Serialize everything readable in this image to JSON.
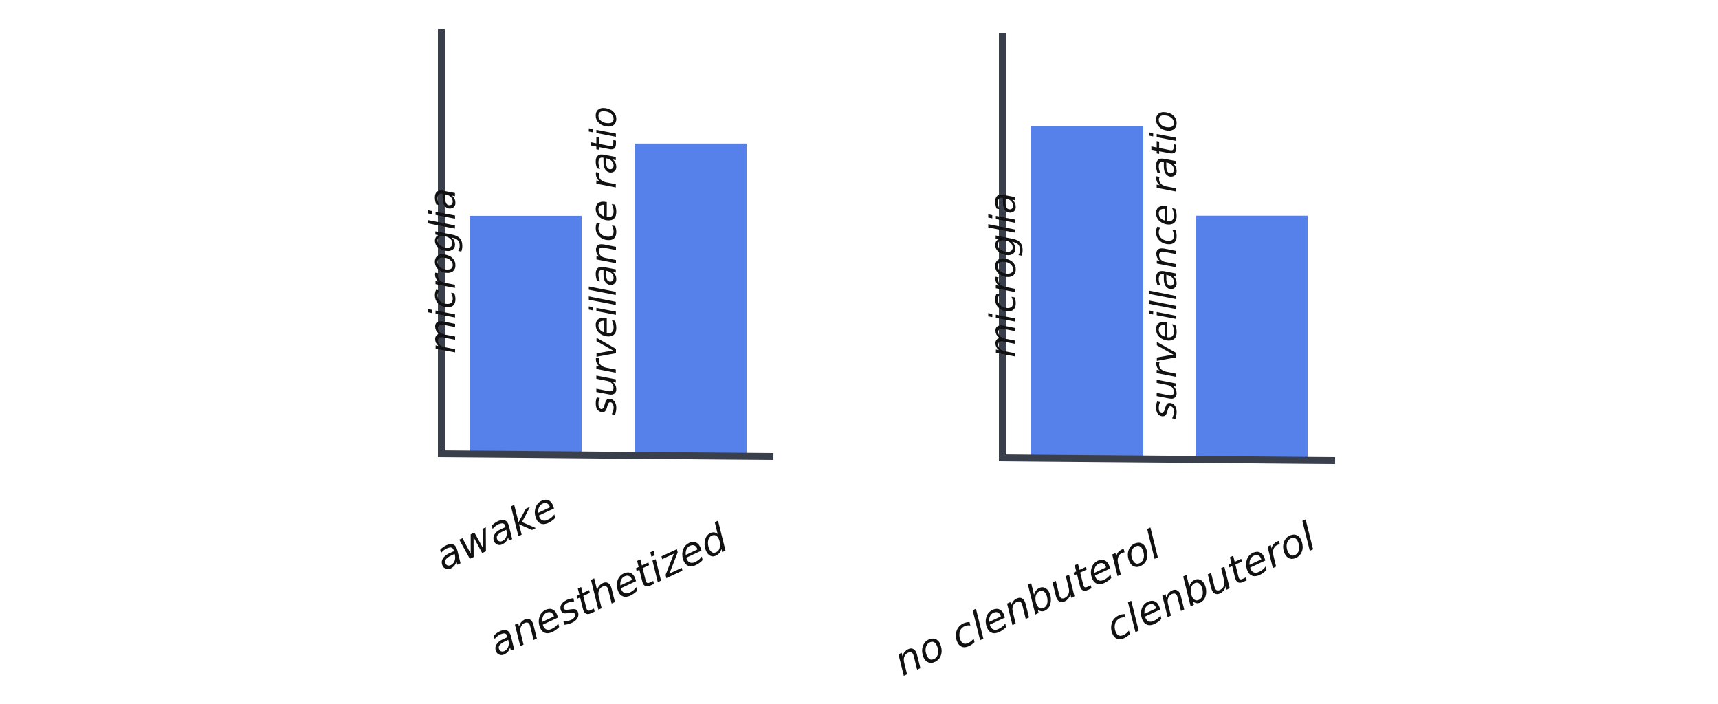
{
  "colors": {
    "bar": "#5681EB",
    "axis": "#3A3F4C",
    "text": "#111111"
  },
  "chart_data": [
    {
      "type": "bar",
      "categories": [
        "awake",
        "anesthetized"
      ],
      "values": [
        0.56,
        0.73
      ],
      "ylabel_lines": [
        "microglia",
        "surveillance ratio"
      ],
      "ylim": [
        0,
        1
      ],
      "xlabel": "",
      "title": "",
      "grid": false,
      "ticks_shown": false
    },
    {
      "type": "bar",
      "categories": [
        "no clenbuterol",
        "clenbuterol"
      ],
      "values": [
        0.78,
        0.57
      ],
      "ylabel_lines": [
        "microglia",
        "surveillance ratio"
      ],
      "ylim": [
        0,
        1
      ],
      "xlabel": "",
      "title": "",
      "grid": false,
      "ticks_shown": false
    }
  ]
}
